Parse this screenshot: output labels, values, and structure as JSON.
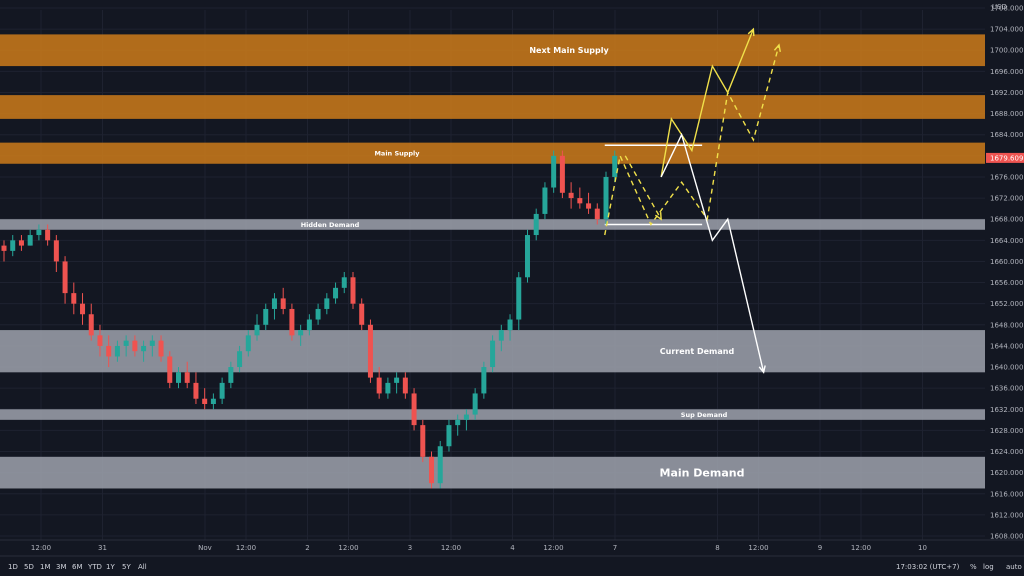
{
  "chart_data": {
    "type": "candlestick",
    "symbol": "",
    "currency": "USD",
    "ylim": [
      1606,
      1710
    ],
    "y_ticks": [
      "1708.000",
      "1704.000",
      "1700.000",
      "1696.000",
      "1692.000",
      "1688.000",
      "1684.000",
      "1680.000",
      "1676.000",
      "1672.000",
      "1668.000",
      "1664.000",
      "1660.000",
      "1656.000",
      "1652.000",
      "1648.000",
      "1644.000",
      "1640.000",
      "1636.000",
      "1632.000",
      "1628.000",
      "1624.000",
      "1620.000",
      "1616.000",
      "1612.000",
      "1608.000"
    ],
    "x_ticks": [
      {
        "label": "12:00",
        "at": 0.4
      },
      {
        "label": "31",
        "at": 1.0
      },
      {
        "label": "Nov",
        "at": 2.0
      },
      {
        "label": "12:00",
        "at": 2.4
      },
      {
        "label": "2",
        "at": 3.0
      },
      {
        "label": "12:00",
        "at": 3.4
      },
      {
        "label": "3",
        "at": 4.0
      },
      {
        "label": "12:00",
        "at": 4.4
      },
      {
        "label": "4",
        "at": 5.0
      },
      {
        "label": "12:00",
        "at": 5.4
      },
      {
        "label": "7",
        "at": 6.0
      },
      {
        "label": "8",
        "at": 7.0
      },
      {
        "label": "12:00",
        "at": 7.4
      },
      {
        "label": "9",
        "at": 8.0
      },
      {
        "label": "12:00",
        "at": 8.4
      },
      {
        "label": "10",
        "at": 9.0
      }
    ],
    "last_price": "1679.609",
    "zones": [
      {
        "label": "Next Main Supply",
        "low": 1697,
        "high": 1703,
        "color": "#c7791a"
      },
      {
        "label": "",
        "low": 1687,
        "high": 1691.5,
        "color": "#c7791a"
      },
      {
        "label": "Main Supply",
        "low": 1678.5,
        "high": 1682.5,
        "color": "#c7791a"
      },
      {
        "label": "Hidden Demand",
        "low": 1666,
        "high": 1668,
        "color": "#9a9ea8"
      },
      {
        "label": "Current Demand",
        "low": 1639,
        "high": 1647,
        "color": "#9a9ea8"
      },
      {
        "label": "Sup Demand",
        "low": 1630,
        "high": 1632,
        "color": "#9a9ea8"
      },
      {
        "label": "Main Demand",
        "low": 1617,
        "high": 1623,
        "color": "#9a9ea8"
      }
    ],
    "candles": [
      [
        1663,
        1664,
        1660,
        1662
      ],
      [
        1662,
        1665,
        1661,
        1664
      ],
      [
        1664,
        1665,
        1662,
        1663
      ],
      [
        1663,
        1666,
        1663,
        1665
      ],
      [
        1665,
        1667,
        1664,
        1666
      ],
      [
        1666,
        1667,
        1663,
        1664
      ],
      [
        1664,
        1665,
        1658,
        1660
      ],
      [
        1660,
        1661,
        1652,
        1654
      ],
      [
        1654,
        1656,
        1650,
        1652
      ],
      [
        1652,
        1654,
        1648,
        1650
      ],
      [
        1650,
        1652,
        1645,
        1646
      ],
      [
        1646,
        1648,
        1642,
        1644
      ],
      [
        1644,
        1646,
        1640,
        1642
      ],
      [
        1642,
        1645,
        1641,
        1644
      ],
      [
        1644,
        1646,
        1642,
        1645
      ],
      [
        1645,
        1646,
        1642,
        1643
      ],
      [
        1643,
        1645,
        1641,
        1644
      ],
      [
        1644,
        1646,
        1642,
        1645
      ],
      [
        1645,
        1646,
        1641,
        1642
      ],
      [
        1642,
        1643,
        1636,
        1637
      ],
      [
        1637,
        1640,
        1636,
        1639
      ],
      [
        1639,
        1641,
        1636,
        1637
      ],
      [
        1637,
        1639,
        1633,
        1634
      ],
      [
        1634,
        1636,
        1632,
        1633
      ],
      [
        1633,
        1635,
        1632,
        1634
      ],
      [
        1634,
        1638,
        1633,
        1637
      ],
      [
        1637,
        1641,
        1636,
        1640
      ],
      [
        1640,
        1644,
        1639,
        1643
      ],
      [
        1643,
        1647,
        1642,
        1646
      ],
      [
        1646,
        1650,
        1645,
        1648
      ],
      [
        1648,
        1652,
        1647,
        1651
      ],
      [
        1651,
        1654,
        1649,
        1653
      ],
      [
        1653,
        1655,
        1650,
        1651
      ],
      [
        1651,
        1652,
        1645,
        1646
      ],
      [
        1646,
        1648,
        1644,
        1647
      ],
      [
        1647,
        1650,
        1646,
        1649
      ],
      [
        1649,
        1652,
        1648,
        1651
      ],
      [
        1651,
        1654,
        1650,
        1653
      ],
      [
        1653,
        1656,
        1652,
        1655
      ],
      [
        1655,
        1658,
        1654,
        1657
      ],
      [
        1657,
        1658,
        1651,
        1652
      ],
      [
        1652,
        1653,
        1647,
        1648
      ],
      [
        1648,
        1649,
        1637,
        1638
      ],
      [
        1638,
        1640,
        1634,
        1635
      ],
      [
        1635,
        1638,
        1634,
        1637
      ],
      [
        1637,
        1639,
        1635,
        1638
      ],
      [
        1638,
        1639,
        1634,
        1635
      ],
      [
        1635,
        1636,
        1628,
        1629
      ],
      [
        1629,
        1630,
        1622,
        1623
      ],
      [
        1623,
        1624,
        1617,
        1618
      ],
      [
        1618,
        1626,
        1617,
        1625
      ],
      [
        1625,
        1630,
        1624,
        1629
      ],
      [
        1629,
        1631,
        1627,
        1630
      ],
      [
        1630,
        1632,
        1628,
        1631
      ],
      [
        1631,
        1636,
        1630,
        1635
      ],
      [
        1635,
        1641,
        1634,
        1640
      ],
      [
        1640,
        1646,
        1639,
        1645
      ],
      [
        1645,
        1648,
        1643,
        1647
      ],
      [
        1647,
        1650,
        1645,
        1649
      ],
      [
        1649,
        1658,
        1647,
        1657
      ],
      [
        1657,
        1666,
        1656,
        1665
      ],
      [
        1665,
        1670,
        1664,
        1669
      ],
      [
        1669,
        1675,
        1668,
        1674
      ],
      [
        1674,
        1681,
        1673,
        1680
      ],
      [
        1680,
        1681,
        1672,
        1673
      ],
      [
        1673,
        1675,
        1670,
        1672
      ],
      [
        1672,
        1674,
        1670,
        1671
      ],
      [
        1671,
        1673,
        1669,
        1670
      ],
      [
        1670,
        1671,
        1667,
        1668
      ],
      [
        1668,
        1677,
        1667,
        1676
      ],
      [
        1676,
        1681,
        1675,
        1680
      ]
    ],
    "candle_x_start": 0.0,
    "candle_x_step": 0.076,
    "projections": [
      {
        "color": "#f0e04a",
        "style": "solid",
        "points": [
          [
            6.45,
            1676
          ],
          [
            6.55,
            1687
          ],
          [
            6.75,
            1681
          ],
          [
            6.95,
            1697
          ],
          [
            7.1,
            1692
          ],
          [
            7.35,
            1704
          ]
        ]
      },
      {
        "color": "#f0e04a",
        "style": "dashed",
        "points": [
          [
            5.9,
            1665
          ],
          [
            6.05,
            1680
          ],
          [
            6.35,
            1667
          ],
          [
            6.65,
            1675
          ],
          [
            6.9,
            1668
          ],
          [
            7.1,
            1692
          ],
          [
            7.35,
            1683
          ],
          [
            7.6,
            1701
          ]
        ]
      },
      {
        "color": "#ffffff",
        "style": "solid",
        "points": [
          [
            6.45,
            1676
          ],
          [
            6.65,
            1684
          ],
          [
            6.95,
            1664
          ],
          [
            7.1,
            1668
          ],
          [
            7.45,
            1639
          ]
        ]
      },
      {
        "color": "#f0e04a",
        "style": "dashed",
        "points": [
          [
            6.1,
            1680
          ],
          [
            6.45,
            1668
          ]
        ]
      }
    ],
    "hlines": [
      {
        "price": 1682,
        "x1": 5.9,
        "x2": 6.85,
        "color": "#ffffff"
      },
      {
        "price": 1667,
        "x1": 5.9,
        "x2": 6.85,
        "color": "#ffffff"
      }
    ]
  },
  "bottom_bar": {
    "timeframes": [
      "1D",
      "5D",
      "1M",
      "3M",
      "6M",
      "YTD",
      "1Y",
      "5Y",
      "All"
    ],
    "time": "17:03:02 (UTC+7)",
    "options": [
      "%",
      "log",
      "auto"
    ]
  }
}
